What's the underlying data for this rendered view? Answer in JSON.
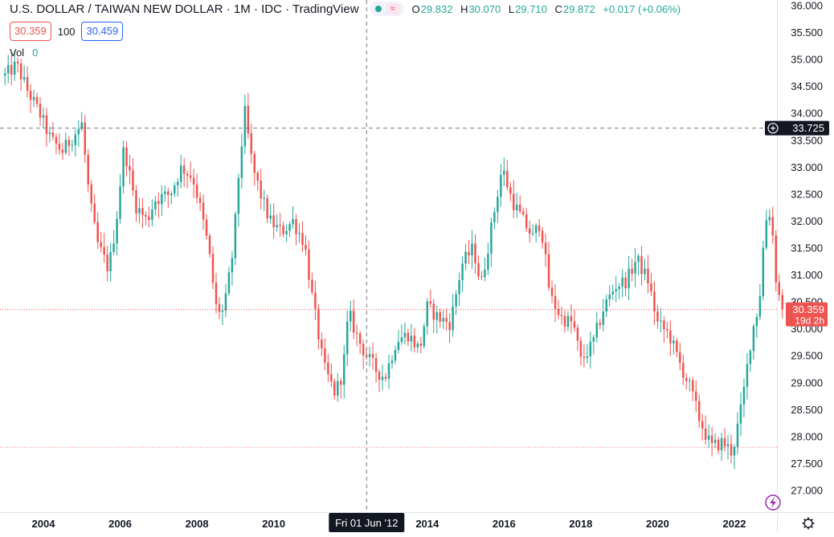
{
  "header": {
    "title": "U.S. DOLLAR / TAIWAN NEW DOLLAR · 1M · IDC · TradingView",
    "status_symbol": "≈",
    "ohlc": {
      "o_label": "O",
      "o": "29.832",
      "h_label": "H",
      "h": "30.070",
      "l_label": "L",
      "l": "29.710",
      "c_label": "C",
      "c": "29.872",
      "change": "+0.017 (+0.06%)"
    }
  },
  "order_panel": {
    "sell": "30.359",
    "qty": "100",
    "buy": "30.459"
  },
  "volume": {
    "label": "Vol",
    "value": "0"
  },
  "crosshair": {
    "date_label": "Fri 01 Jun '12",
    "price_label": "33.725"
  },
  "last_price": {
    "value": "30.359",
    "countdown": "19d 2h"
  },
  "colors": {
    "up": "#26a69a",
    "down": "#ef5350",
    "accent": "#2962ff",
    "text": "#131722"
  },
  "chart_data": {
    "type": "candlestick",
    "title": "U.S. DOLLAR / TAIWAN NEW DOLLAR",
    "interval": "1M",
    "source": "IDC",
    "ylim": [
      26.65,
      36.05
    ],
    "xlim": [
      2002.9,
      2023.55
    ],
    "y_ticks": [
      "27.000",
      "27.500",
      "28.000",
      "28.500",
      "29.000",
      "29.500",
      "30.000",
      "30.500",
      "31.000",
      "31.500",
      "32.000",
      "32.500",
      "33.000",
      "33.500",
      "34.000",
      "34.500",
      "35.000",
      "35.500",
      "36.000"
    ],
    "x_ticks": [
      "2004",
      "2006",
      "2008",
      "2010",
      "2012",
      "2014",
      "2016",
      "2018",
      "2020",
      "2022"
    ],
    "x_tick_values": [
      2004,
      2006,
      2008,
      2010,
      2012,
      2014,
      2016,
      2018,
      2020,
      2022
    ],
    "crosshair_x": 2012.42,
    "crosshair_y": 33.725,
    "reference_line": 27.8,
    "last_close": 30.359,
    "keypoints": [
      [
        2003.0,
        34.7
      ],
      [
        2003.3,
        34.9
      ],
      [
        2003.6,
        34.4
      ],
      [
        2003.9,
        34.0
      ],
      [
        2004.2,
        33.5
      ],
      [
        2004.5,
        33.3
      ],
      [
        2004.8,
        33.6
      ],
      [
        2005.0,
        33.8
      ],
      [
        2005.2,
        32.4
      ],
      [
        2005.4,
        31.6
      ],
      [
        2005.7,
        31.1
      ],
      [
        2005.9,
        32.0
      ],
      [
        2006.1,
        33.4
      ],
      [
        2006.4,
        32.3
      ],
      [
        2006.7,
        32.0
      ],
      [
        2006.9,
        32.4
      ],
      [
        2007.3,
        32.5
      ],
      [
        2007.6,
        33.0
      ],
      [
        2007.9,
        32.8
      ],
      [
        2008.1,
        32.2
      ],
      [
        2008.3,
        31.5
      ],
      [
        2008.5,
        30.4
      ],
      [
        2008.7,
        30.3
      ],
      [
        2008.95,
        31.5
      ],
      [
        2009.1,
        33.0
      ],
      [
        2009.25,
        34.0
      ],
      [
        2009.45,
        33.0
      ],
      [
        2009.7,
        32.4
      ],
      [
        2009.9,
        32.0
      ],
      [
        2010.2,
        31.8
      ],
      [
        2010.5,
        32.0
      ],
      [
        2010.8,
        31.6
      ],
      [
        2011.0,
        30.6
      ],
      [
        2011.3,
        29.3
      ],
      [
        2011.6,
        28.8
      ],
      [
        2011.8,
        29.2
      ],
      [
        2011.95,
        30.3
      ],
      [
        2012.2,
        29.8
      ],
      [
        2012.42,
        29.5
      ],
      [
        2012.7,
        29.2
      ],
      [
        2012.9,
        29.1
      ],
      [
        2013.2,
        29.8
      ],
      [
        2013.5,
        29.9
      ],
      [
        2013.8,
        29.6
      ],
      [
        2014.0,
        30.4
      ],
      [
        2014.3,
        30.2
      ],
      [
        2014.6,
        30.1
      ],
      [
        2014.9,
        31.2
      ],
      [
        2015.2,
        31.5
      ],
      [
        2015.4,
        30.8
      ],
      [
        2015.7,
        32.0
      ],
      [
        2015.95,
        33.0
      ],
      [
        2016.2,
        32.4
      ],
      [
        2016.5,
        32.0
      ],
      [
        2016.75,
        31.7
      ],
      [
        2016.95,
        32.0
      ],
      [
        2017.2,
        30.6
      ],
      [
        2017.5,
        30.2
      ],
      [
        2017.8,
        30.1
      ],
      [
        2018.0,
        29.4
      ],
      [
        2018.3,
        29.7
      ],
      [
        2018.6,
        30.4
      ],
      [
        2018.9,
        30.8
      ],
      [
        2019.2,
        30.9
      ],
      [
        2019.45,
        31.3
      ],
      [
        2019.75,
        30.9
      ],
      [
        2020.0,
        30.1
      ],
      [
        2020.3,
        29.9
      ],
      [
        2020.55,
        29.4
      ],
      [
        2020.85,
        28.9
      ],
      [
        2021.1,
        28.3
      ],
      [
        2021.4,
        27.8
      ],
      [
        2021.7,
        27.9
      ],
      [
        2021.95,
        27.7
      ],
      [
        2022.2,
        28.6
      ],
      [
        2022.45,
        29.9
      ],
      [
        2022.65,
        30.5
      ],
      [
        2022.8,
        32.0
      ],
      [
        2022.95,
        32.2
      ],
      [
        2023.1,
        30.8
      ],
      [
        2023.25,
        30.359
      ]
    ]
  }
}
